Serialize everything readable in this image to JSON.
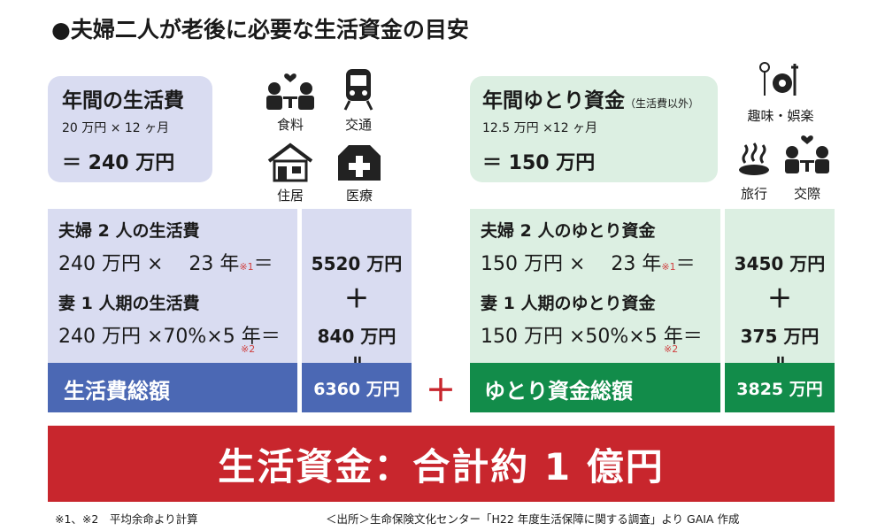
{
  "title": "●夫婦二人が老後に必要な生活資金の目安",
  "left": {
    "box_title": "年間の生活費",
    "box_formula": "20 万円 × 12 ヶ月",
    "box_total": "＝ 240 万円",
    "icons": [
      {
        "name": "food-icon",
        "label": "食料"
      },
      {
        "name": "train-icon",
        "label": "交通"
      },
      {
        "name": "house-icon",
        "label": "住居"
      },
      {
        "name": "hospital-icon",
        "label": "医療"
      }
    ],
    "sec1_head": "夫婦 2 人の生活費",
    "sec1_eq": "240 万円 ×　 23 年",
    "sec1_note": "※1",
    "sec1_eqsign": "＝",
    "sec1_val": "5520 万円",
    "plus": "＋",
    "sec2_head": "妻 1 人期の生活費",
    "sec2_eq": "240 万円 ×70%×5 年＝",
    "sec2_note": "※2",
    "sec2_val": "840 万円",
    "equals": "॥",
    "total_label": "生活費総額",
    "total_val": "6360 万円"
  },
  "right": {
    "box_title": "年間ゆとり資金",
    "box_title_note": "（生活費以外）",
    "box_formula": "12.5 万円 ×12 ヶ月",
    "box_total": "＝ 150 万円",
    "icons": [
      {
        "name": "hobby-icon",
        "label": "趣味・娯楽"
      },
      {
        "name": "hot-spring-icon",
        "label": "旅行"
      },
      {
        "name": "social-icon",
        "label": "交際"
      }
    ],
    "sec1_head": "夫婦 2 人のゆとり資金",
    "sec1_eq": "150 万円 ×　 23 年",
    "sec1_note": "※1",
    "sec1_eqsign": "＝",
    "sec1_val": "3450 万円",
    "plus": "＋",
    "sec2_head": "妻 1 人期のゆとり資金",
    "sec2_eq": "150 万円 ×50%×5 年＝",
    "sec2_note": "※2",
    "sec2_val": "375 万円",
    "equals": "॥",
    "total_label": "ゆとり資金総額",
    "total_val": "3825 万円"
  },
  "middle_plus": "＋",
  "banner": "生活資金：合計約 1 億円",
  "footnote": "※1、※2　平均余命より計算",
  "source": "＜出所＞生命保険文化センター「H22 年度生活保障に関する調査」より GAIA 作成",
  "colors": {
    "blue": "#4b68b4",
    "green": "#128c4a",
    "red": "#c8262d",
    "lavender": "#d9dcf1",
    "mint": "#dcefe2"
  }
}
